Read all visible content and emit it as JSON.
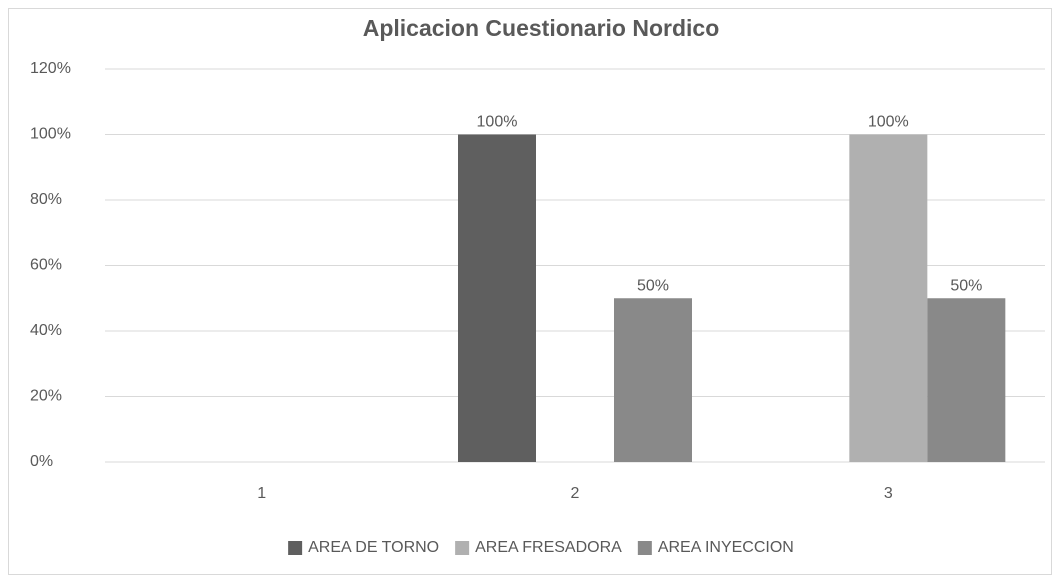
{
  "chart_data": {
    "type": "bar",
    "title": "Aplicacion Cuestionario Nordico",
    "categories": [
      "1",
      "2",
      "3"
    ],
    "series": [
      {
        "name": "AREA DE TORNO",
        "color": "#5f5f5f",
        "values": [
          0,
          100,
          0
        ],
        "value_labels": [
          null,
          "100%",
          null
        ]
      },
      {
        "name": "AREA FRESADORA",
        "color": "#b0b0b0",
        "values": [
          0,
          0,
          100
        ],
        "value_labels": [
          null,
          null,
          "100%"
        ]
      },
      {
        "name": "AREA INYECCION",
        "color": "#898989",
        "values": [
          0,
          50,
          50
        ],
        "value_labels": [
          null,
          "50%",
          "50%"
        ]
      }
    ],
    "ylim": [
      0,
      120
    ],
    "yticks": [
      {
        "value": 0,
        "label": "0%"
      },
      {
        "value": 20,
        "label": "20%"
      },
      {
        "value": 40,
        "label": "40%"
      },
      {
        "value": 60,
        "label": "60%"
      },
      {
        "value": 80,
        "label": "80%"
      },
      {
        "value": 100,
        "label": "100%"
      },
      {
        "value": 120,
        "label": "120%"
      }
    ],
    "grid": true,
    "legend": "bottom"
  }
}
